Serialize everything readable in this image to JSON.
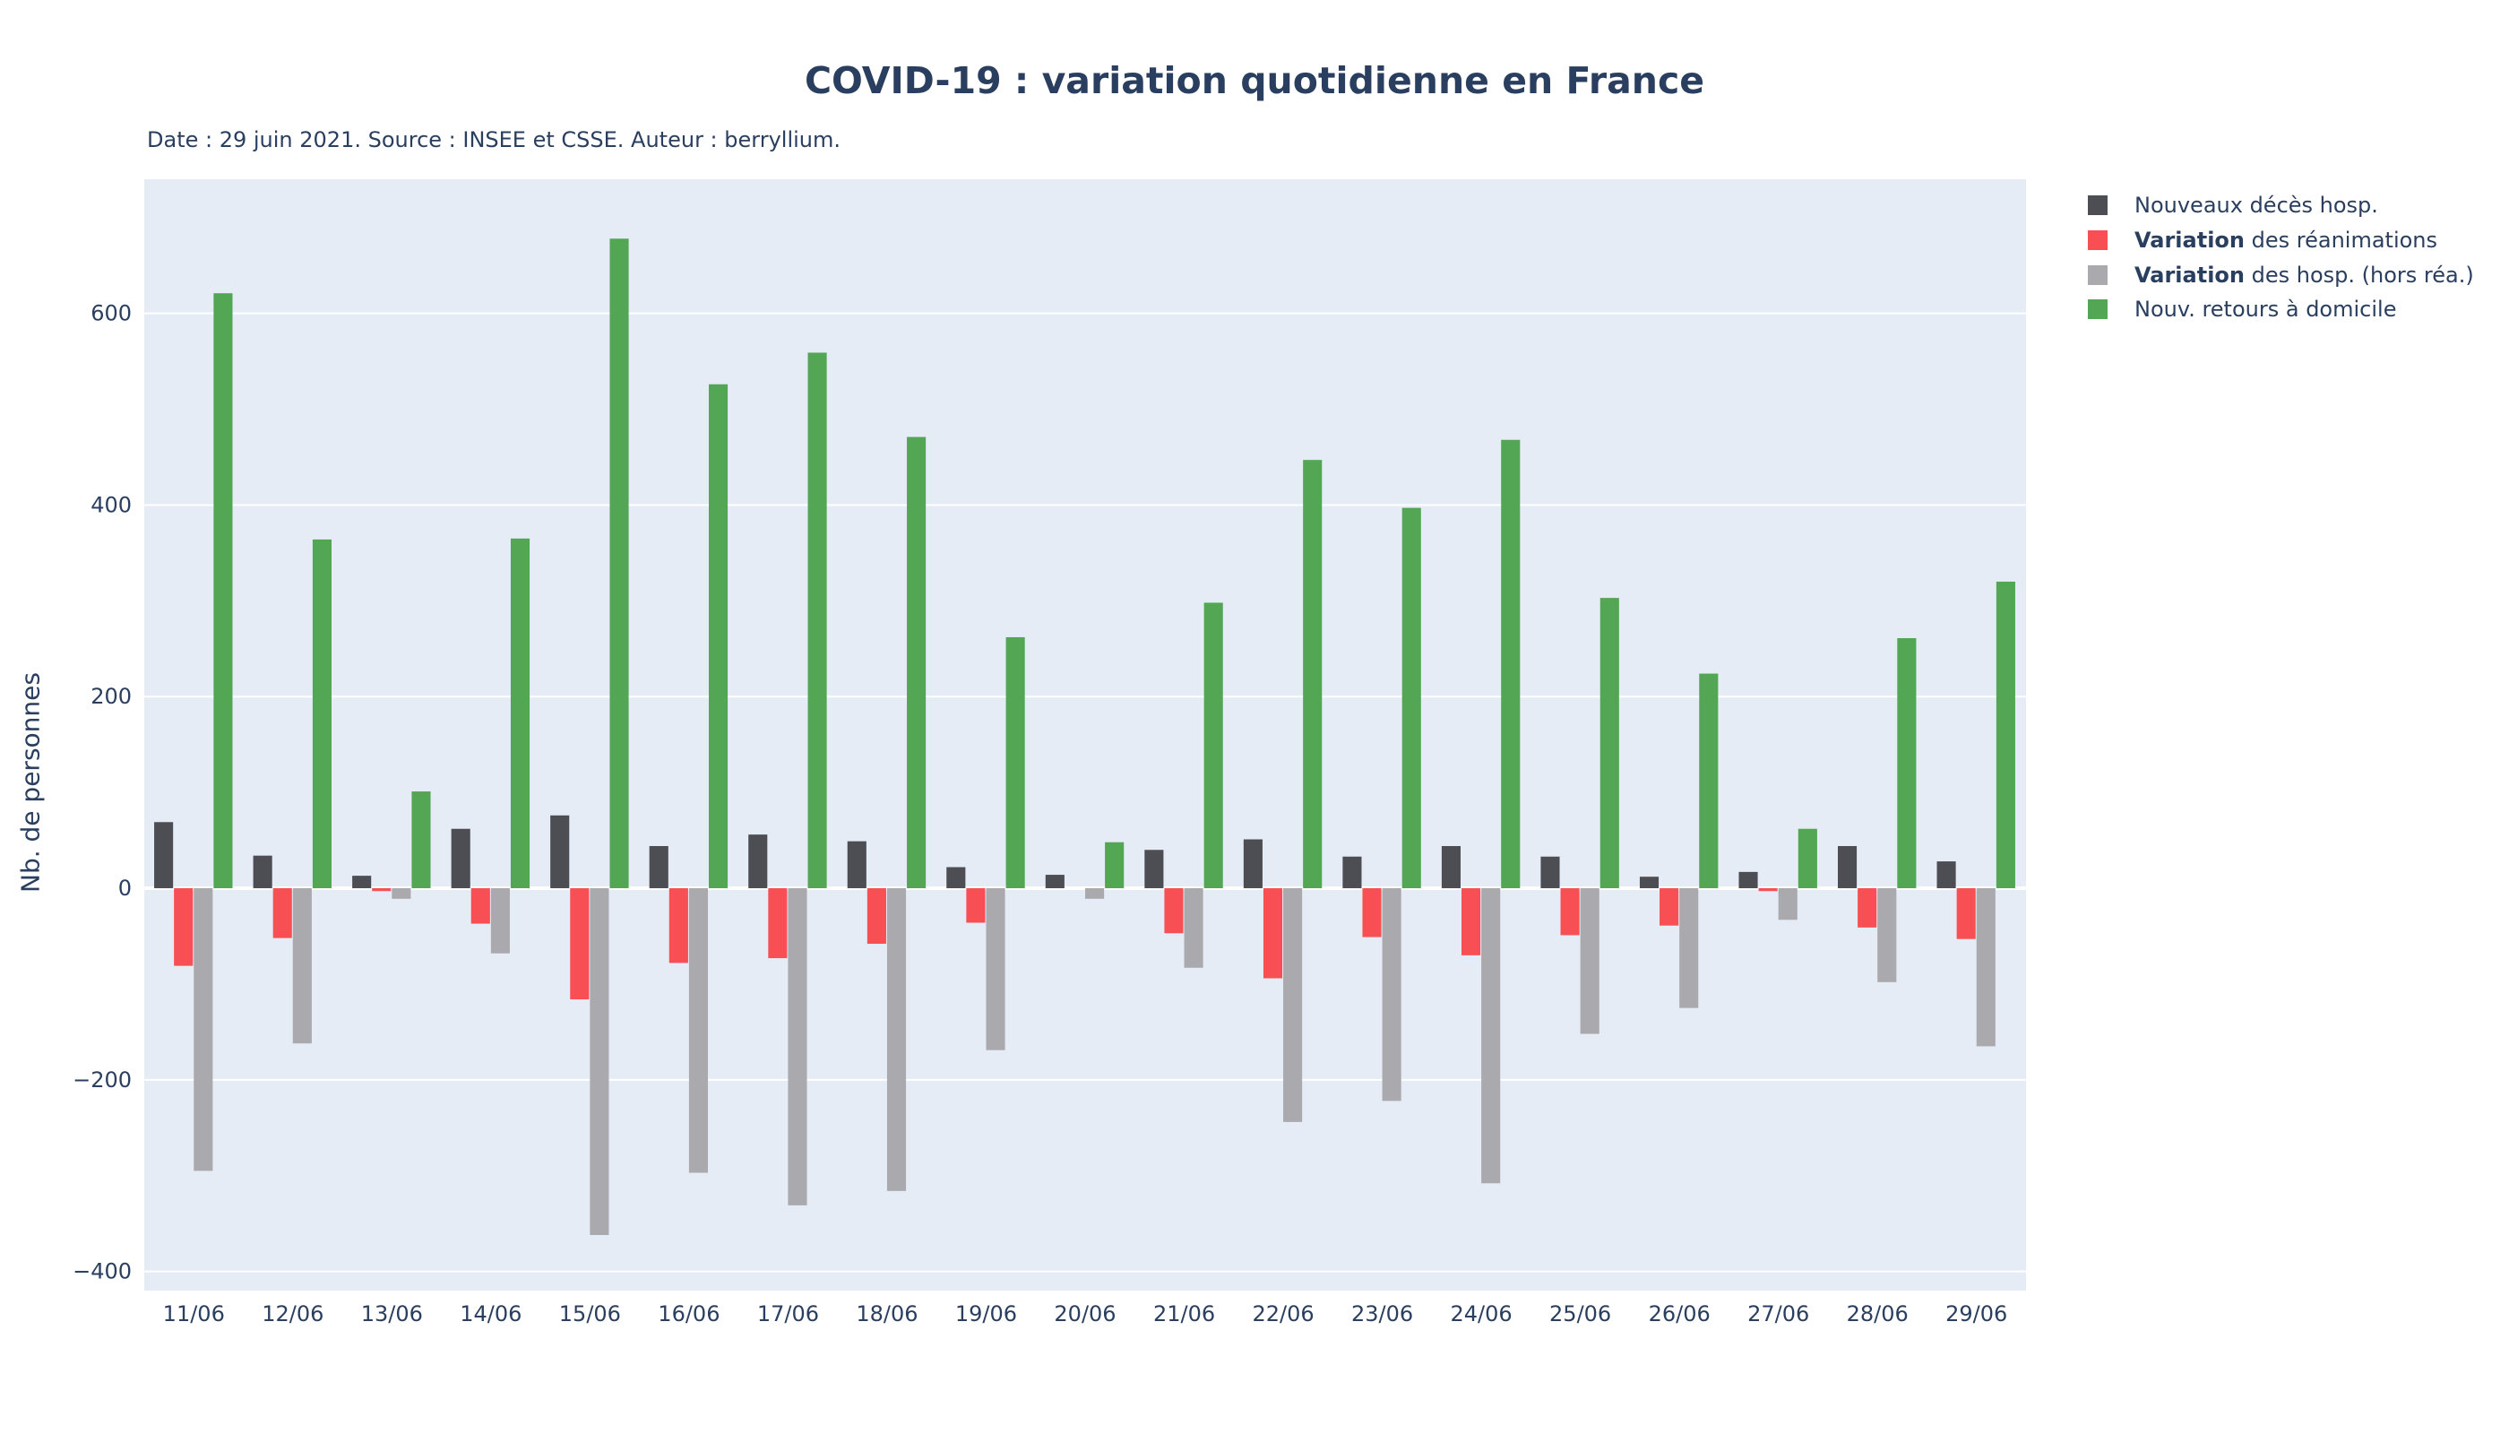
{
  "chart_data": {
    "type": "bar",
    "title": "COVID-19 : variation quotidienne en France",
    "subtitle": "Date : 29 juin 2021. Source : INSEE et CSSE. Auteur : berryllium.",
    "xlabel": "",
    "ylabel": "Nb. de personnes",
    "ylim": [
      -420,
      740
    ],
    "yticks": [
      -400,
      -200,
      0,
      200,
      400,
      600
    ],
    "ytick_labels": [
      "−400",
      "−200",
      "0",
      "200",
      "400",
      "600"
    ],
    "grid": true,
    "legend_position": "right",
    "plot_background": "#e5ecf6",
    "categories": [
      "11/06",
      "12/06",
      "13/06",
      "14/06",
      "15/06",
      "16/06",
      "17/06",
      "18/06",
      "19/06",
      "20/06",
      "21/06",
      "22/06",
      "23/06",
      "24/06",
      "25/06",
      "26/06",
      "27/06",
      "28/06",
      "29/06"
    ],
    "series": [
      {
        "name": "Nouveaux décès hosp.",
        "name_bold": "",
        "name_rest": "Nouveaux décès hosp.",
        "color": "#4d4d54",
        "values": [
          69,
          34,
          13,
          62,
          76,
          44,
          56,
          49,
          22,
          14,
          40,
          51,
          33,
          44,
          33,
          12,
          17,
          44,
          28
        ]
      },
      {
        "name": "Variation des réanimations",
        "name_bold": "Variation",
        "name_rest": " des réanimations",
        "color": "#f74f53",
        "values": [
          -81,
          -52,
          -3,
          -37,
          -116,
          -78,
          -73,
          -58,
          -36,
          0,
          -47,
          -94,
          -51,
          -70,
          -49,
          -39,
          -3,
          -41,
          -53
        ]
      },
      {
        "name": "Variation des hosp. (hors réa.)",
        "name_bold": "Variation",
        "name_rest": " des hosp. (hors réa.)",
        "color": "#a9a9ae",
        "values": [
          -295,
          -162,
          -11,
          -68,
          -362,
          -297,
          -331,
          -316,
          -169,
          -11,
          -83,
          -244,
          -222,
          -308,
          -152,
          -125,
          -33,
          -98,
          -165
        ]
      },
      {
        "name": "Nouv. retours à domicile",
        "name_bold": "",
        "name_rest": "Nouv. retours à domicile",
        "color": "#52a654",
        "values": [
          621,
          364,
          101,
          365,
          678,
          526,
          559,
          471,
          262,
          48,
          298,
          447,
          397,
          468,
          303,
          224,
          62,
          261,
          320
        ]
      }
    ]
  }
}
